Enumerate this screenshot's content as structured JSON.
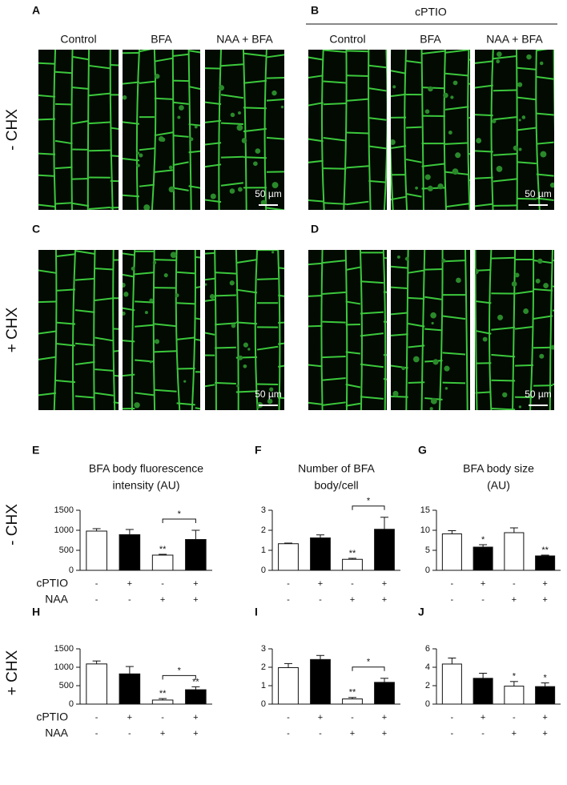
{
  "figure": {
    "panels": [
      {
        "label": "A",
        "columns": [
          "Control",
          "BFA",
          "NAA + BFA"
        ]
      },
      {
        "label": "B",
        "group": "cPTIO",
        "columns": [
          "Control",
          "BFA",
          "NAA + BFA"
        ]
      },
      {
        "label": "C"
      },
      {
        "label": "D"
      }
    ],
    "row_labels": [
      "- CHX",
      "+ CHX"
    ],
    "scale_bar": "50 µm"
  },
  "chart_data": [
    {
      "type": "bar",
      "panel": "E",
      "title_lines": [
        "BFA body fluorescence",
        "intensity (AU)"
      ],
      "values": [
        980,
        890,
        380,
        770
      ],
      "errors": [
        60,
        130,
        20,
        230
      ],
      "colors": [
        "#ffffff",
        "#000000",
        "#ffffff",
        "#000000"
      ],
      "stars": [
        null,
        null,
        "**",
        null
      ],
      "bracket_label": "*",
      "ylim": [
        0,
        1500
      ],
      "yticks": [
        0,
        500,
        1000,
        1500
      ],
      "conditions": [
        {
          "name": "cPTIO",
          "signs": [
            "-",
            "+",
            "-",
            "+"
          ]
        },
        {
          "name": "NAA",
          "signs": [
            "-",
            "-",
            "+",
            "+"
          ]
        }
      ]
    },
    {
      "type": "bar",
      "panel": "F",
      "title_lines": [
        "Number of BFA",
        "body/cell"
      ],
      "values": [
        1.33,
        1.62,
        0.55,
        2.05
      ],
      "errors": [
        0.03,
        0.15,
        0.05,
        0.6
      ],
      "colors": [
        "#ffffff",
        "#000000",
        "#ffffff",
        "#000000"
      ],
      "stars": [
        null,
        null,
        "**",
        null
      ],
      "bracket_label": "*",
      "ylim": [
        0,
        3
      ],
      "yticks": [
        0,
        1,
        2,
        3
      ],
      "conditions": [
        {
          "signs": [
            "-",
            "+",
            "-",
            "+"
          ]
        },
        {
          "signs": [
            "-",
            "-",
            "+",
            "+"
          ]
        }
      ]
    },
    {
      "type": "bar",
      "panel": "G",
      "title_lines": [
        "BFA body size",
        "(AU)"
      ],
      "values": [
        9.1,
        5.8,
        9.4,
        3.6
      ],
      "errors": [
        0.8,
        0.6,
        1.2,
        0.2
      ],
      "colors": [
        "#ffffff",
        "#000000",
        "#ffffff",
        "#000000"
      ],
      "stars": [
        null,
        "*",
        null,
        "**"
      ],
      "ylim": [
        0,
        15
      ],
      "yticks": [
        0,
        5,
        10,
        15
      ],
      "conditions": [
        {
          "signs": [
            "-",
            "+",
            "-",
            "+"
          ]
        },
        {
          "signs": [
            "-",
            "-",
            "+",
            "+"
          ]
        }
      ]
    },
    {
      "type": "bar",
      "panel": "H",
      "values": [
        1090,
        820,
        110,
        390
      ],
      "errors": [
        80,
        200,
        40,
        80
      ],
      "colors": [
        "#ffffff",
        "#000000",
        "#ffffff",
        "#000000"
      ],
      "stars": [
        null,
        null,
        "**",
        "**"
      ],
      "bracket_label": "*",
      "ylim": [
        0,
        1500
      ],
      "yticks": [
        0,
        500,
        1000,
        1500
      ],
      "conditions": [
        {
          "name": "cPTIO",
          "signs": [
            "-",
            "+",
            "-",
            "+"
          ]
        },
        {
          "name": "NAA",
          "signs": [
            "-",
            "-",
            "+",
            "+"
          ]
        }
      ]
    },
    {
      "type": "bar",
      "panel": "I",
      "values": [
        1.98,
        2.42,
        0.28,
        1.18
      ],
      "errors": [
        0.22,
        0.22,
        0.08,
        0.22
      ],
      "colors": [
        "#ffffff",
        "#000000",
        "#ffffff",
        "#000000"
      ],
      "stars": [
        null,
        null,
        "**",
        null
      ],
      "bracket_label": "*",
      "ylim": [
        0,
        3
      ],
      "yticks": [
        0,
        1,
        2,
        3
      ],
      "conditions": [
        {
          "signs": [
            "-",
            "+",
            "-",
            "+"
          ]
        },
        {
          "signs": [
            "-",
            "-",
            "+",
            "+"
          ]
        }
      ]
    },
    {
      "type": "bar",
      "panel": "J",
      "values": [
        4.35,
        2.8,
        1.95,
        1.9
      ],
      "errors": [
        0.65,
        0.55,
        0.5,
        0.4
      ],
      "colors": [
        "#ffffff",
        "#000000",
        "#ffffff",
        "#000000"
      ],
      "stars": [
        null,
        null,
        "*",
        "*"
      ],
      "ylim": [
        0,
        6
      ],
      "yticks": [
        0,
        2,
        4,
        6
      ],
      "conditions": [
        {
          "signs": [
            "-",
            "+",
            "-",
            "+"
          ]
        },
        {
          "signs": [
            "-",
            "-",
            "+",
            "+"
          ]
        }
      ]
    }
  ]
}
